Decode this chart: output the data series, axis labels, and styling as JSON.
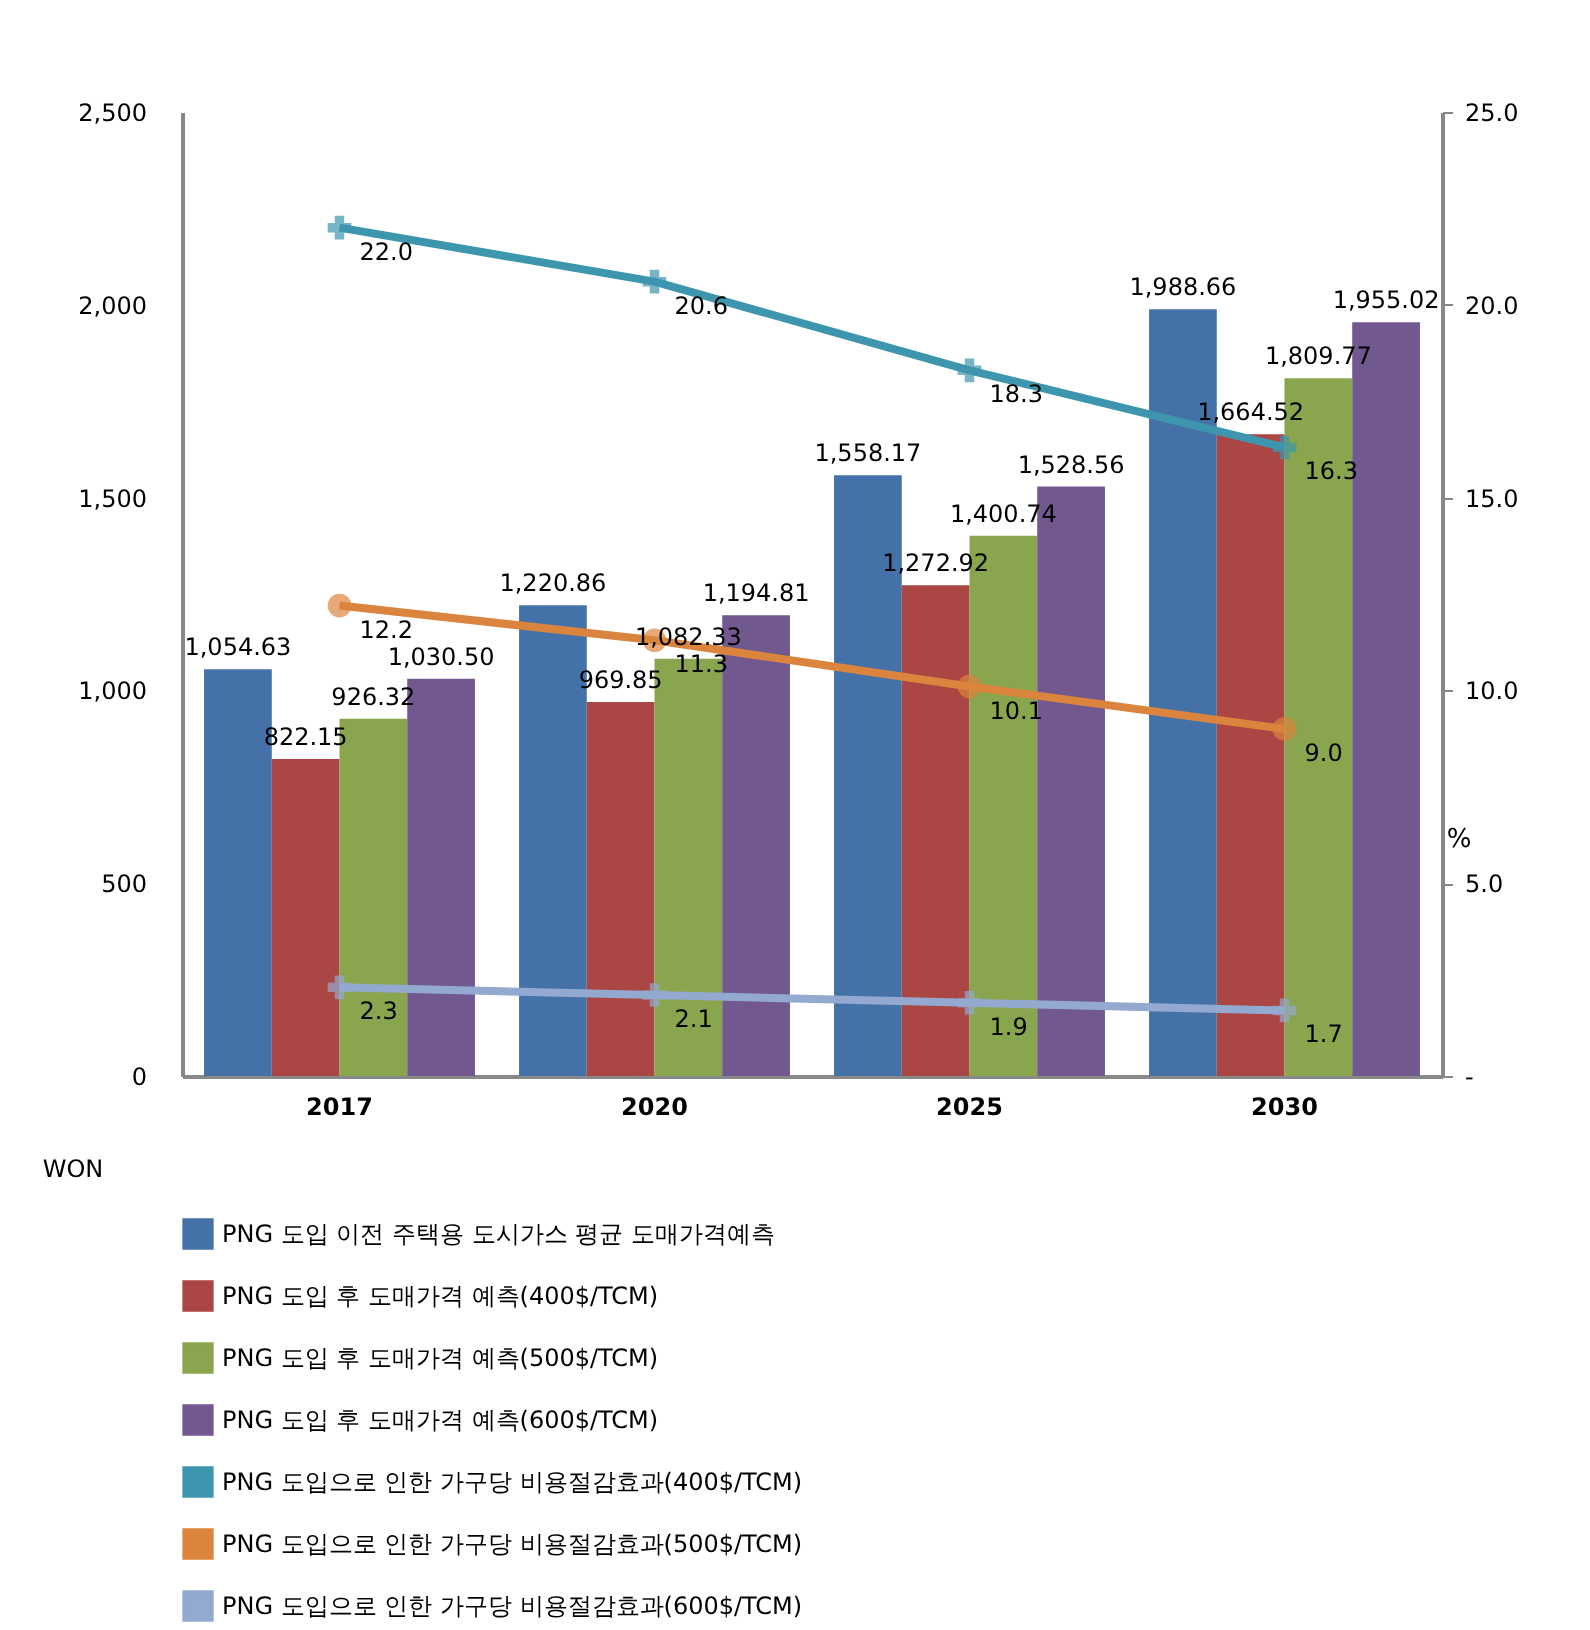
{
  "chart_data": {
    "type": "bar",
    "ylabel": "WON",
    "y2label": "%",
    "categories": [
      "2017",
      "2020",
      "2025",
      "2030"
    ],
    "series": [
      {
        "name": "PNG 도입 이전 주택용 도시가스 평균 도매가격예측",
        "color": "#4472a8",
        "values": [
          1054.63,
          1220.86,
          1558.17,
          1988.66
        ],
        "value_labels": [
          "1,054.63",
          "1,220.86",
          "1,558.17",
          "1,988.66"
        ]
      },
      {
        "name": "PNG 도입 후  도매가격 예측(400$/TCM)",
        "color": "#aa4643",
        "values": [
          822.15,
          969.85,
          1272.92,
          1664.52
        ],
        "value_labels": [
          "822.15",
          "969.85",
          "1,272.92",
          "1,664.52"
        ]
      },
      {
        "name": "PNG 도입 후  도매가격 예측(500$/TCM)",
        "color": "#89a54e",
        "values": [
          926.32,
          1082.33,
          1400.74,
          1809.77
        ],
        "value_labels": [
          "926.32",
          "1,082.33",
          "1,400.74",
          "1,809.77"
        ]
      },
      {
        "name": "PNG 도입 후  도매가격 예측(600$/TCM)",
        "color": "#71588f",
        "values": [
          1030.5,
          1194.81,
          1528.56,
          1955.02
        ],
        "value_labels": [
          "1,030.50",
          "1,194.81",
          "1,528.56",
          "1,955.02"
        ]
      },
      {
        "name": "PNG 도입으로 인한 가구당 비용절감효과(400$/TCM)",
        "type": "line",
        "axis": "y2",
        "marker": "cross",
        "color": "#3d96ae",
        "values": [
          22.0,
          20.6,
          18.3,
          16.3
        ],
        "value_labels": [
          "22.0",
          "20.6",
          "18.3",
          "16.3"
        ]
      },
      {
        "name": "PNG 도입으로 인한 가구당 비용절감효과(500$/TCM)",
        "type": "line",
        "axis": "y2",
        "marker": "circle",
        "color": "#db843d",
        "values": [
          12.2,
          11.3,
          10.1,
          9.0
        ],
        "value_labels": [
          "12.2",
          "11.3",
          "10.1",
          "9.0"
        ]
      },
      {
        "name": "PNG 도입으로 인한 가구당 비용절감효과(600$/TCM)",
        "type": "line",
        "axis": "y2",
        "marker": "cross",
        "color": "#93a9cf",
        "values": [
          2.3,
          2.1,
          1.9,
          1.7
        ],
        "value_labels": [
          "2.3",
          "2.1",
          "1.9",
          "1.7"
        ]
      }
    ],
    "ylim": [
      0,
      2500
    ],
    "yticks": [
      {
        "value": 0,
        "label": "0"
      },
      {
        "value": 500,
        "label": "500"
      },
      {
        "value": 1000,
        "label": "1,000"
      },
      {
        "value": 1500,
        "label": "1,500"
      },
      {
        "value": 2000,
        "label": "2,000"
      },
      {
        "value": 2500,
        "label": "2,500"
      }
    ],
    "y2lim": [
      0,
      25
    ],
    "y2ticks": [
      {
        "value": 0,
        "label": "-"
      },
      {
        "value": 5,
        "label": "5.0"
      },
      {
        "value": 10,
        "label": "10.0"
      },
      {
        "value": 15,
        "label": "15.0"
      },
      {
        "value": 20,
        "label": "20.0"
      },
      {
        "value": 25,
        "label": "25.0"
      }
    ],
    "legend": "bottom",
    "grid": false,
    "line_style": "solid"
  }
}
